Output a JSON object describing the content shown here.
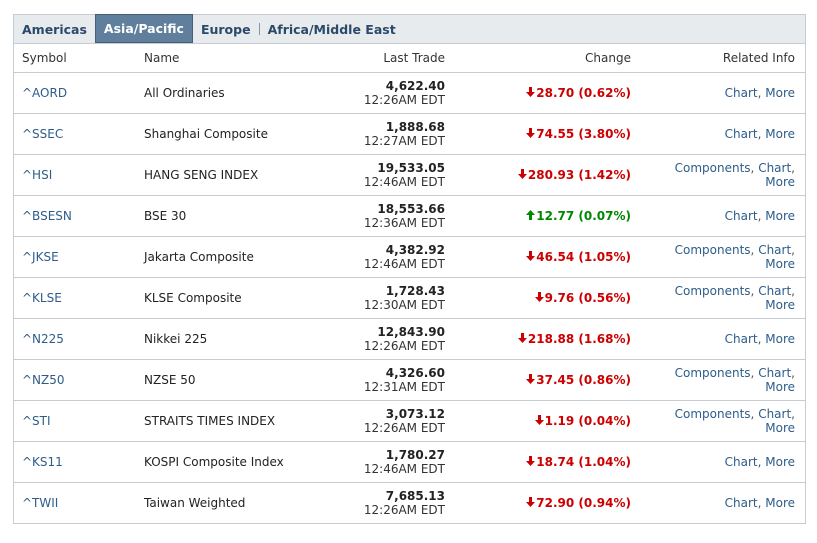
{
  "tabs": [
    {
      "label": "Americas",
      "active": false
    },
    {
      "label": "Asia/Pacific",
      "active": true
    },
    {
      "label": "Europe",
      "active": false
    },
    {
      "label": "Africa/Middle East",
      "active": false
    }
  ],
  "headers": {
    "symbol": "Symbol",
    "name": "Name",
    "last_trade": "Last Trade",
    "change": "Change",
    "related": "Related Info"
  },
  "colors": {
    "down": "#cc0000",
    "up": "#008800",
    "link": "#2e5c8a",
    "tab_active": "#5f7f9c"
  },
  "rows": [
    {
      "symbol": "^AORD",
      "name": "All Ordinaries",
      "price": "4,622.40",
      "time": "12:26AM EDT",
      "dir": "down",
      "change": "28.70 (0.62%)",
      "components": false
    },
    {
      "symbol": "^SSEC",
      "name": "Shanghai Composite",
      "price": "1,888.68",
      "time": "12:27AM EDT",
      "dir": "down",
      "change": "74.55 (3.80%)",
      "components": false
    },
    {
      "symbol": "^HSI",
      "name": "HANG SENG INDEX",
      "price": "19,533.05",
      "time": "12:46AM EDT",
      "dir": "down",
      "change": "280.93 (1.42%)",
      "components": true
    },
    {
      "symbol": "^BSESN",
      "name": "BSE 30",
      "price": "18,553.66",
      "time": "12:36AM EDT",
      "dir": "up",
      "change": "12.77 (0.07%)",
      "components": false
    },
    {
      "symbol": "^JKSE",
      "name": "Jakarta Composite",
      "price": "4,382.92",
      "time": "12:46AM EDT",
      "dir": "down",
      "change": "46.54 (1.05%)",
      "components": true
    },
    {
      "symbol": "^KLSE",
      "name": "KLSE Composite",
      "price": "1,728.43",
      "time": "12:30AM EDT",
      "dir": "down",
      "change": "9.76 (0.56%)",
      "components": true
    },
    {
      "symbol": "^N225",
      "name": "Nikkei 225",
      "price": "12,843.90",
      "time": "12:26AM EDT",
      "dir": "down",
      "change": "218.88 (1.68%)",
      "components": false
    },
    {
      "symbol": "^NZ50",
      "name": "NZSE 50",
      "price": "4,326.60",
      "time": "12:31AM EDT",
      "dir": "down",
      "change": "37.45 (0.86%)",
      "components": true
    },
    {
      "symbol": "^STI",
      "name": "STRAITS TIMES INDEX",
      "price": "3,073.12",
      "time": "12:26AM EDT",
      "dir": "down",
      "change": "1.19 (0.04%)",
      "components": true
    },
    {
      "symbol": "^KS11",
      "name": "KOSPI Composite Index",
      "price": "1,780.27",
      "time": "12:46AM EDT",
      "dir": "down",
      "change": "18.74 (1.04%)",
      "components": false
    },
    {
      "symbol": "^TWII",
      "name": "Taiwan Weighted",
      "price": "7,685.13",
      "time": "12:26AM EDT",
      "dir": "down",
      "change": "72.90 (0.94%)",
      "components": false
    }
  ],
  "links": {
    "components": "Components",
    "chart": "Chart",
    "more": "More",
    "sep": ", "
  }
}
